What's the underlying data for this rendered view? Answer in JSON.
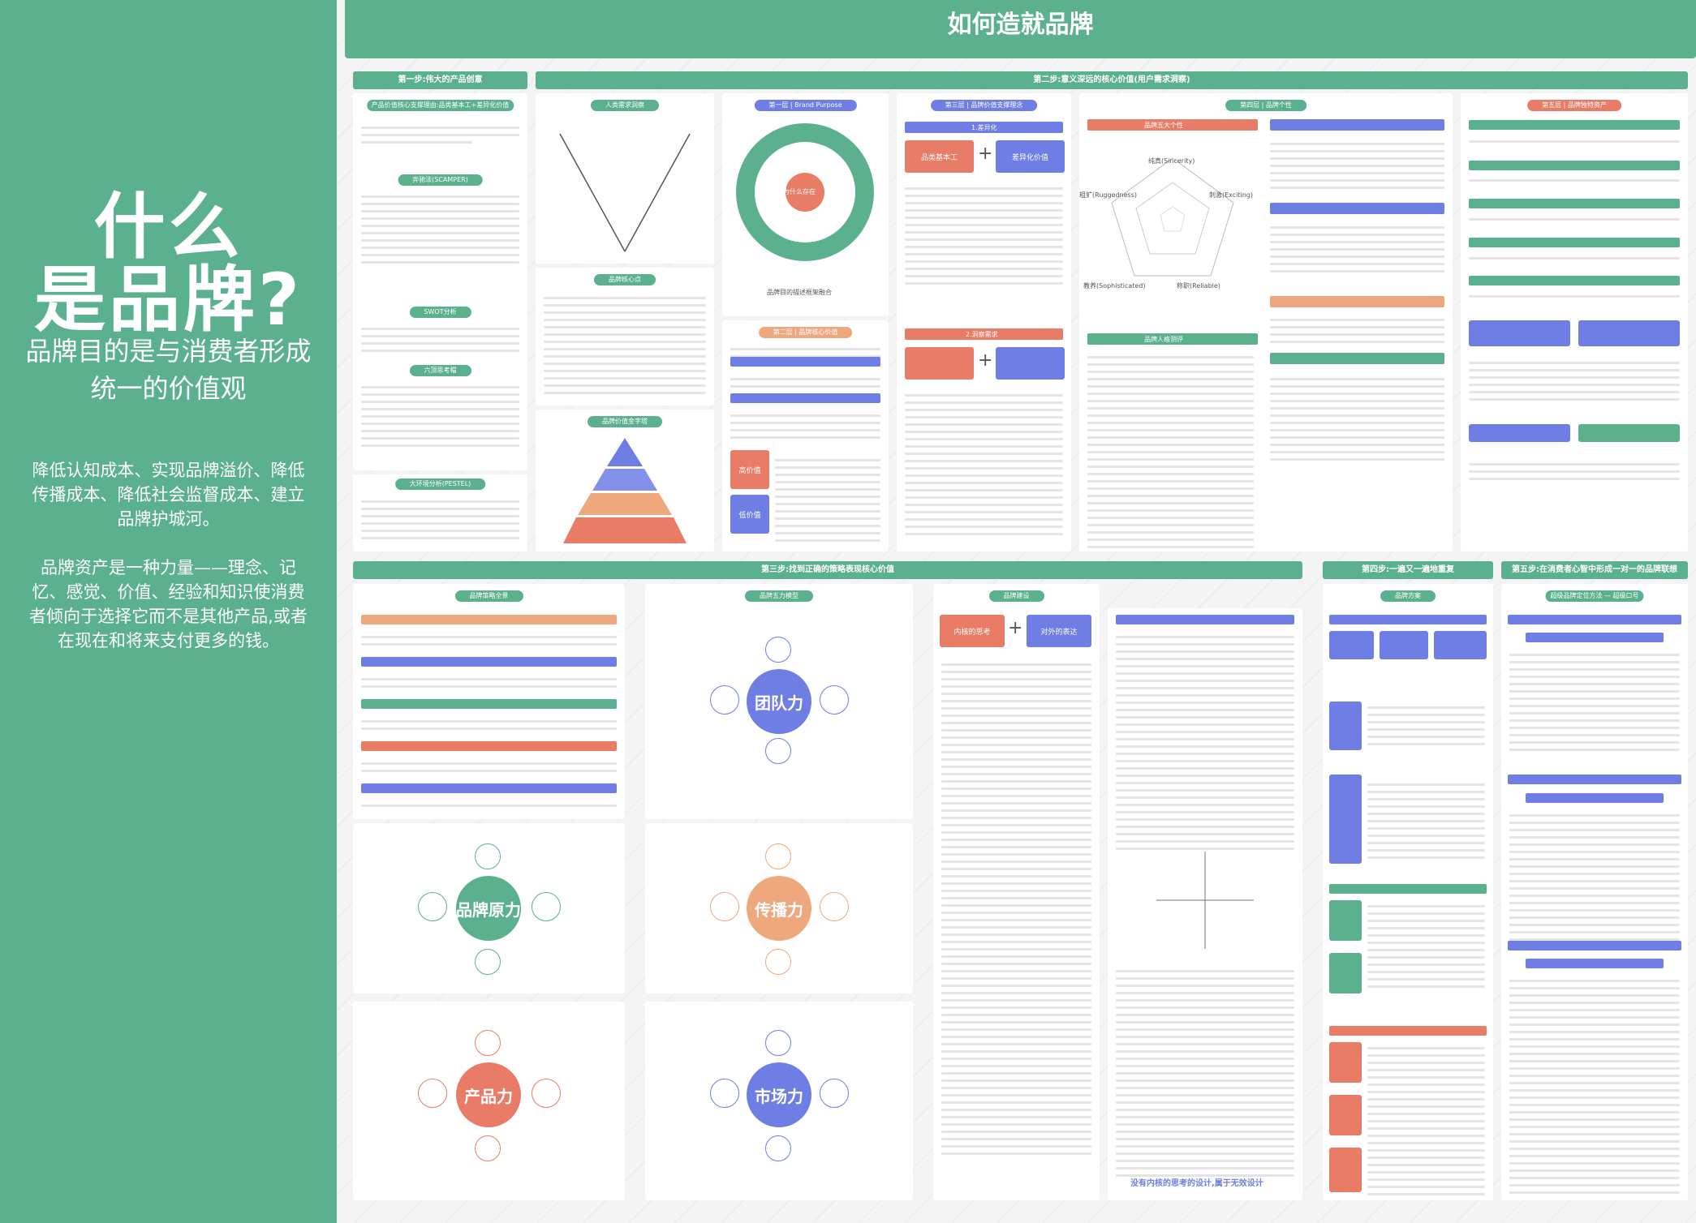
{
  "left": {
    "title_line1": "什么",
    "title_line2": "是品牌?",
    "purpose": "品牌目的是与消费者形成统一的价值观",
    "para1": "降低认知成本、实现品牌溢价、降低传播成本、降低社会监督成本、建立品牌护城河。",
    "para2": "品牌资产是一种力量——理念、记忆、感觉、价值、经验和知识使消费者倾向于选择它而不是其他产品,或者在现在和将来支付更多的钱。"
  },
  "main_title": "如何造就品牌",
  "steps": {
    "s1": "第一步:伟大的产品创意",
    "s2": "第二步:意义深远的核心价值(用户需求洞察)",
    "s3": "第三步:找到正确的策略表现核心价值",
    "s4": "第四步:一遍又一遍地重复",
    "s5": "第五步:在消费者心智中形成一对一的品牌联想"
  },
  "panels": {
    "p1": "产品价值核心支撑理由:品类基本工+差异化价值",
    "scamper": "奔驰法(SCAMPER)",
    "swot": "SWOT分析",
    "six_hats": "六顶思考帽",
    "pestel": "大环境分析(PESTEL)",
    "needs": "人类需求洞察",
    "core": "品牌核心点",
    "pyramid": "品牌价值金字塔",
    "purpose": "第一层 | Brand Purpose",
    "layer2": "第二层 | 品牌核心价值",
    "layer3": "第三层 | 品牌价值支撑理念",
    "layer4": "第四层 | 品牌个性",
    "layer5": "第五层 | 品牌独特资产",
    "diff": "1.差异化",
    "base": "品类基本工",
    "diffval": "差异化价值",
    "need2": "2.洞察需求",
    "high": "高价值",
    "low": "低价值",
    "five": "品牌五大个性",
    "personify": "品牌人格测评",
    "matrix": "品牌策略全景",
    "power": "品牌五力模型",
    "build": "品牌建设",
    "program": "品牌方案",
    "slogan": "超级品牌定位方法 — 超级口号",
    "team": "团队力",
    "origin": "品牌原力",
    "spread": "传播力",
    "product": "产品力",
    "market": "市场力",
    "inner": "内核的思考",
    "outer": "对外的表达",
    "bottom_note": "没有内核的思考的设计,属于无效设计"
  },
  "purpose_center": "为什么存在",
  "purpose_caption": "品牌目的描述框架融合",
  "radar": {
    "t": "纯真(Sincerity)",
    "r": "刺激(Exciting)",
    "br": "称职(Reliable)",
    "bl": "教养(Sophisticated)",
    "l": "粗犷(Ruggedness)"
  },
  "colors": {
    "green": "#5bb08d",
    "blue": "#6e7ee4",
    "orange": "#e97c67",
    "peach": "#efa87e"
  }
}
